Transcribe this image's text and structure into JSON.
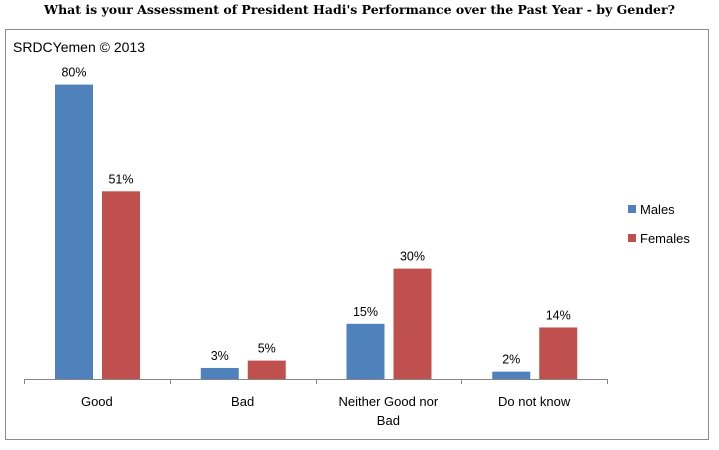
{
  "title": "What is your Assessment of President Hadi's Performance over the Past Year - by Gender?",
  "watermark": "SRDCYemen © 2013",
  "colors": {
    "males": "#4f81bd",
    "females": "#c0504d",
    "axis": "#868686"
  },
  "chart_data": {
    "type": "bar",
    "title": "What is your Assessment of President Hadi's Performance over the Past Year - by Gender?",
    "categories": [
      "Good",
      "Bad",
      "Neither Good nor Bad",
      "Do not know"
    ],
    "series": [
      {
        "name": "Males",
        "values": [
          80,
          3,
          15,
          2
        ],
        "labels": [
          "80%",
          "3%",
          "15%",
          "2%"
        ],
        "color": "#4f81bd"
      },
      {
        "name": "Females",
        "values": [
          51,
          5,
          30,
          14
        ],
        "labels": [
          "51%",
          "5%",
          "30%",
          "14%"
        ],
        "color": "#c0504d"
      }
    ],
    "ylim": [
      0,
      80
    ],
    "grid": false,
    "legend": "right"
  }
}
